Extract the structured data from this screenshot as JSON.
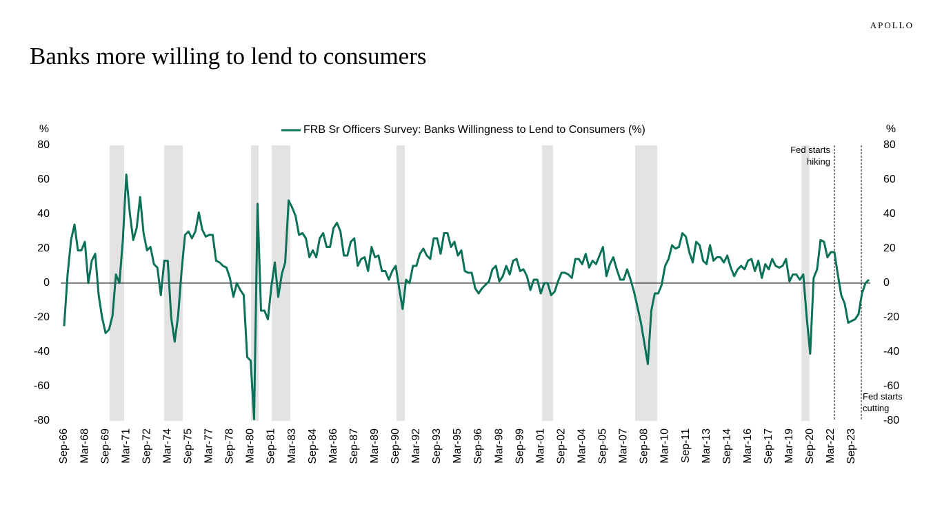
{
  "brand": "APOLLO",
  "chart_data": {
    "type": "line",
    "title": "Banks more willing to lend to consumers",
    "y_label": "%",
    "y2_label": "%",
    "categories": [
      "Sep-66",
      null,
      null,
      null,
      null,
      null,
      "Mar-68",
      null,
      null,
      null,
      null,
      null,
      "Sep-69",
      null,
      null,
      null,
      null,
      null,
      "Mar-71",
      null,
      null,
      null,
      null,
      null,
      "Sep-72",
      null,
      null,
      null,
      null,
      null,
      "Mar-74",
      null,
      null,
      null,
      null,
      null,
      "Sep-75",
      null,
      null,
      null,
      null,
      null,
      "Mar-77",
      null,
      null,
      null,
      null,
      null,
      "Sep-78",
      null,
      null,
      null,
      null,
      null,
      "Mar-80",
      null,
      null,
      null,
      null,
      null,
      "Sep-81",
      null,
      null,
      null,
      null,
      null,
      "Mar-83",
      null,
      null,
      null,
      null,
      null,
      "Sep-84",
      null,
      null,
      null,
      null,
      null,
      "Mar-86",
      null,
      null,
      null,
      null,
      null,
      "Sep-87",
      null,
      null,
      null,
      null,
      null,
      "Mar-89",
      null,
      null,
      null,
      null,
      null,
      "Sep-90",
      null,
      null,
      null,
      null,
      null,
      "Mar-92",
      null,
      null,
      null,
      null,
      null,
      "Sep-93",
      null,
      null,
      null,
      null,
      null,
      "Mar-95",
      null,
      null,
      null,
      null,
      null,
      "Sep-96",
      null,
      null,
      null,
      null,
      null,
      "Mar-98",
      null,
      null,
      null,
      null,
      null,
      "Sep-99",
      null,
      null,
      null,
      null,
      null,
      "Mar-01",
      null,
      null,
      null,
      null,
      null,
      "Sep-02",
      null,
      null,
      null,
      null,
      null,
      "Mar-04",
      null,
      null,
      null,
      null,
      null,
      "Sep-05",
      null,
      null,
      null,
      null,
      null,
      "Mar-07",
      null,
      null,
      null,
      null,
      null,
      "Sep-08",
      null,
      null,
      null,
      null,
      null,
      "Mar-10",
      null,
      null,
      null,
      null,
      null,
      "Sep-11",
      null,
      null,
      null,
      null,
      null,
      "Mar-13",
      null,
      null,
      null,
      null,
      null,
      "Sep-14",
      null,
      null,
      null,
      null,
      null,
      "Mar-16",
      null,
      null,
      null,
      null,
      null,
      "Sep-17",
      null,
      null,
      null,
      null,
      null,
      "Mar-19",
      null,
      null,
      null,
      null,
      null,
      "Sep-20",
      null,
      null,
      null,
      null,
      null,
      "Mar-22",
      null,
      null,
      null,
      null,
      null,
      "Sep-23",
      null,
      null,
      null,
      null,
      null
    ],
    "series": [
      {
        "name": "FRB Sr Officers Survey: Banks Willingness to Lend to Consumers (%)",
        "color": "#0b7258",
        "values": [
          -25,
          5,
          25,
          34,
          19,
          19,
          24,
          0,
          13,
          17,
          -7,
          -20,
          -29,
          -27,
          -19,
          5,
          0,
          25,
          63,
          41,
          25,
          32,
          50,
          29,
          19,
          21,
          11,
          9,
          -7,
          13,
          13,
          -20,
          -34,
          -19,
          7,
          28,
          30,
          26,
          30,
          41,
          31,
          27,
          28,
          28,
          13,
          12,
          10,
          9,
          3,
          -8,
          0,
          -4,
          -7,
          -43,
          -45,
          -79,
          46,
          -16,
          -16,
          -21,
          -2,
          12,
          -8,
          5,
          12,
          48,
          44,
          39,
          28,
          29,
          26,
          15,
          19,
          15,
          26,
          29,
          21,
          21,
          32,
          35,
          30,
          16,
          16,
          24,
          26,
          10,
          14,
          15,
          7,
          21,
          15,
          16,
          7,
          7,
          2,
          7,
          10,
          -3,
          -15,
          2,
          0,
          10,
          10,
          17,
          20,
          16,
          14,
          26,
          26,
          17,
          29,
          29,
          21,
          24,
          16,
          19,
          7,
          6,
          6,
          -3,
          -6,
          -3,
          -1,
          1,
          8,
          10,
          1,
          4,
          10,
          5,
          13,
          14,
          7,
          8,
          4,
          -4,
          2,
          2,
          -6,
          0,
          0,
          -7,
          -5,
          1,
          6,
          6,
          5,
          3,
          14,
          14,
          11,
          17,
          9,
          13,
          11,
          16,
          21,
          4,
          11,
          15,
          8,
          2,
          2,
          8,
          2,
          -5,
          -14,
          -23,
          -35,
          -47,
          -16,
          -6,
          -6,
          -1,
          10,
          14,
          22,
          20,
          21,
          29,
          27,
          18,
          12,
          24,
          22,
          13,
          11,
          22,
          13,
          15,
          15,
          12,
          16,
          9,
          4,
          8,
          10,
          8,
          13,
          14,
          7,
          13,
          3,
          11,
          8,
          14,
          10,
          9,
          10,
          14,
          1,
          5,
          5,
          2,
          5,
          -20,
          -41,
          3,
          8,
          25,
          24,
          15,
          18,
          18,
          5,
          -7,
          -12,
          -23,
          -22,
          -21,
          -18,
          -6,
          0,
          2
        ]
      }
    ],
    "ylim": [
      -80,
      80
    ],
    "yticks": [
      -80,
      -60,
      -40,
      -20,
      0,
      20,
      40,
      60,
      80
    ],
    "y2lim": [
      -80,
      80
    ],
    "y2ticks": [
      -80,
      -60,
      -40,
      -20,
      0,
      20,
      40,
      60,
      80
    ],
    "annotations": [
      "Fed starts hiking",
      "Fed starts cutting"
    ],
    "legend": "top"
  }
}
